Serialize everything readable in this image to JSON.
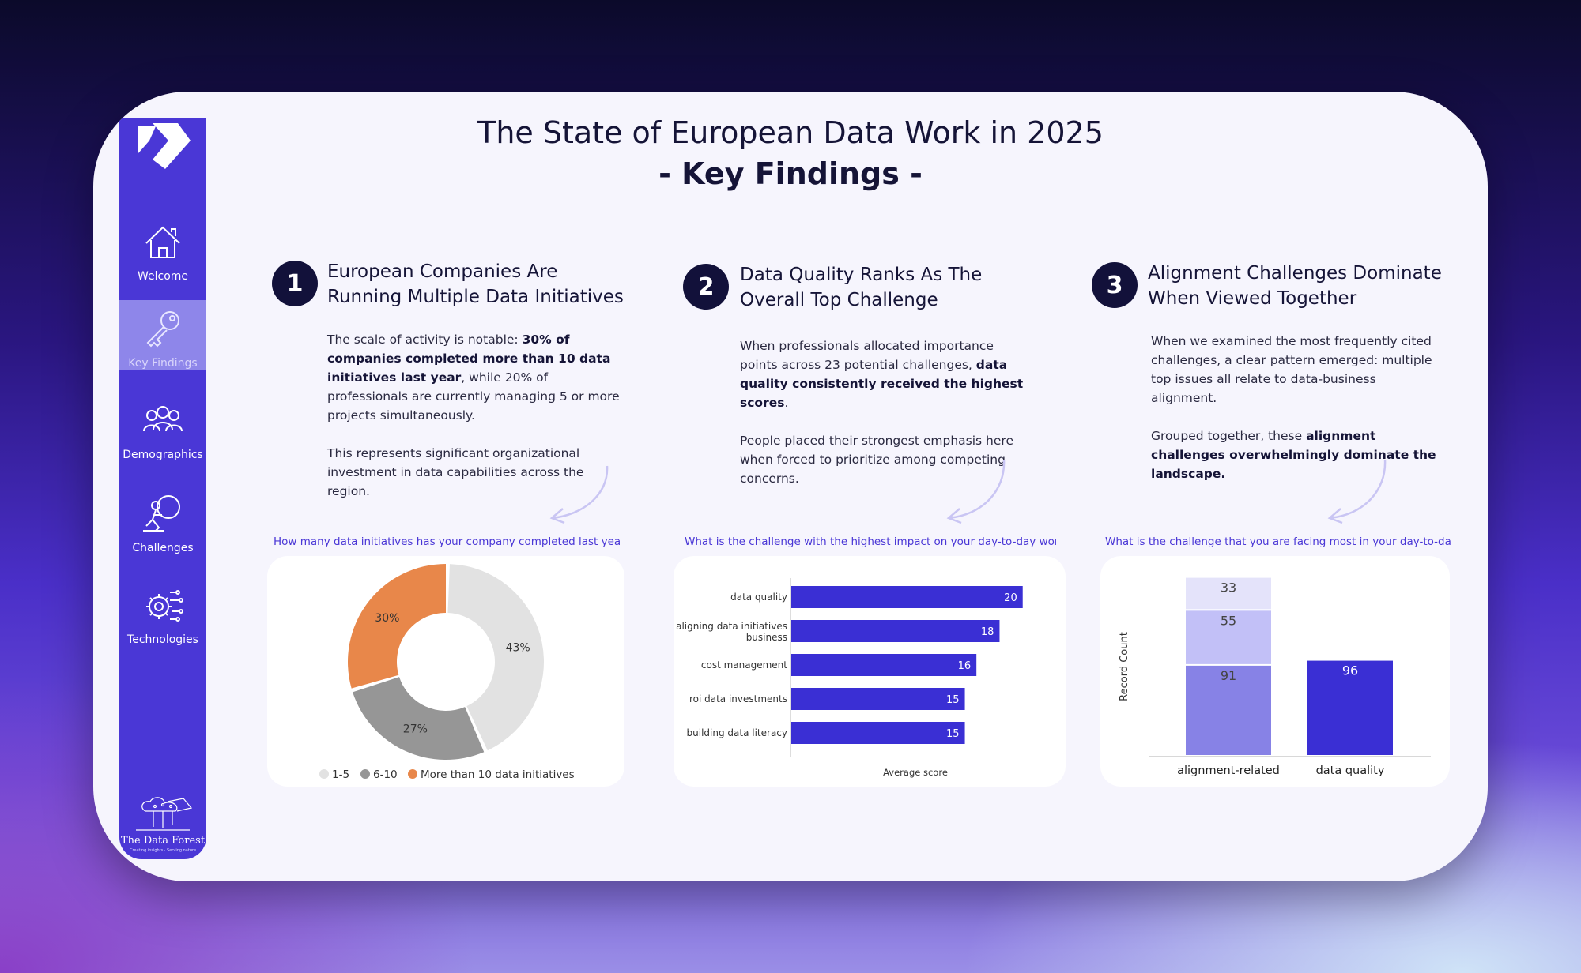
{
  "title": {
    "line1": "The State of European Data Work in 2025",
    "line2": "- Key Findings -"
  },
  "sidebar": {
    "items": [
      {
        "label": "Welcome",
        "icon": "home-icon"
      },
      {
        "label": "Key Findings",
        "icon": "key-icon",
        "active": true
      },
      {
        "label": "Demographics",
        "icon": "people-icon"
      },
      {
        "label": "Challenges",
        "icon": "challenge-icon"
      },
      {
        "label": "Technologies",
        "icon": "gear-circuit-icon"
      }
    ],
    "brand": {
      "name": "The Data Forest",
      "tagline": "Creating insights · Serving nature"
    }
  },
  "findings": [
    {
      "number": "1",
      "heading_line1": "European Companies Are",
      "heading_line2": "Running Multiple Data Initiatives",
      "p1_a": "The scale of activity is notable: ",
      "p1_b": "30% of companies completed more than 10 data initiatives last year",
      "p1_c": ", while 20% of professionals are currently managing 5 or more projects simultaneously.",
      "p2": "This represents significant organizational investment in data capabilities across the region.",
      "question": "How many data initiatives has your company completed last year?"
    },
    {
      "number": "2",
      "heading_line1": "Data Quality Ranks As The",
      "heading_line2": "Overall Top Challenge",
      "p1_a": "When professionals allocated importance points across 23 potential challenges, ",
      "p1_b": "data quality consistently received the highest scores",
      "p1_c": ".",
      "p2": "People placed their strongest emphasis here when forced to prioritize among competing concerns.",
      "question": "What is the challenge with the highest impact on your day-to-day work?"
    },
    {
      "number": "3",
      "heading_line1": "Alignment Challenges Dominate",
      "heading_line2": "When Viewed Together",
      "p1": "When we examined the most frequently cited challenges, a clear pattern emerged: multiple top issues all relate to data-business alignment.",
      "p2_a": "Grouped together, these ",
      "p2_b": "alignment challenges overwhelmingly dominate the landscape.",
      "question": "What is the challenge that you are facing most in your day-to-da..."
    }
  ],
  "chart_data": [
    {
      "type": "pie",
      "donut": true,
      "slices": [
        {
          "label": "1-5",
          "value": 43,
          "display": "43%",
          "color": "#e2e2e2"
        },
        {
          "label": "6-10",
          "value": 27,
          "display": "27%",
          "color": "#969696"
        },
        {
          "label": "More than 10 data initiatives",
          "value": 30,
          "display": "30%",
          "color": "#e8874a"
        }
      ],
      "legend_position": "bottom"
    },
    {
      "type": "bar",
      "orientation": "horizontal",
      "categories": [
        "data quality",
        "aligning data initiatives business",
        "cost management",
        "roi data investments",
        "building data literacy"
      ],
      "category_lines": [
        [
          "data quality"
        ],
        [
          "aligning data initiatives",
          "business"
        ],
        [
          "cost management"
        ],
        [
          "roi data investments"
        ],
        [
          "building data literacy"
        ]
      ],
      "values": [
        20,
        18,
        16,
        15,
        15
      ],
      "xlabel": "Average score",
      "xlim": [
        0,
        22
      ],
      "color": "#3a2fd4"
    },
    {
      "type": "bar",
      "stacked": true,
      "categories": [
        "alignment-related",
        "data quality"
      ],
      "series": [
        {
          "values": [
            91,
            0
          ],
          "color": "#8782e6"
        },
        {
          "values": [
            55,
            0
          ],
          "color": "#c2c0f7"
        },
        {
          "values": [
            33,
            0
          ],
          "color": "#e4e3fa"
        },
        {
          "values": [
            0,
            96
          ],
          "color": "#3a2fd4"
        }
      ],
      "ylabel": "Record Count",
      "ylim": [
        0,
        185
      ]
    }
  ]
}
